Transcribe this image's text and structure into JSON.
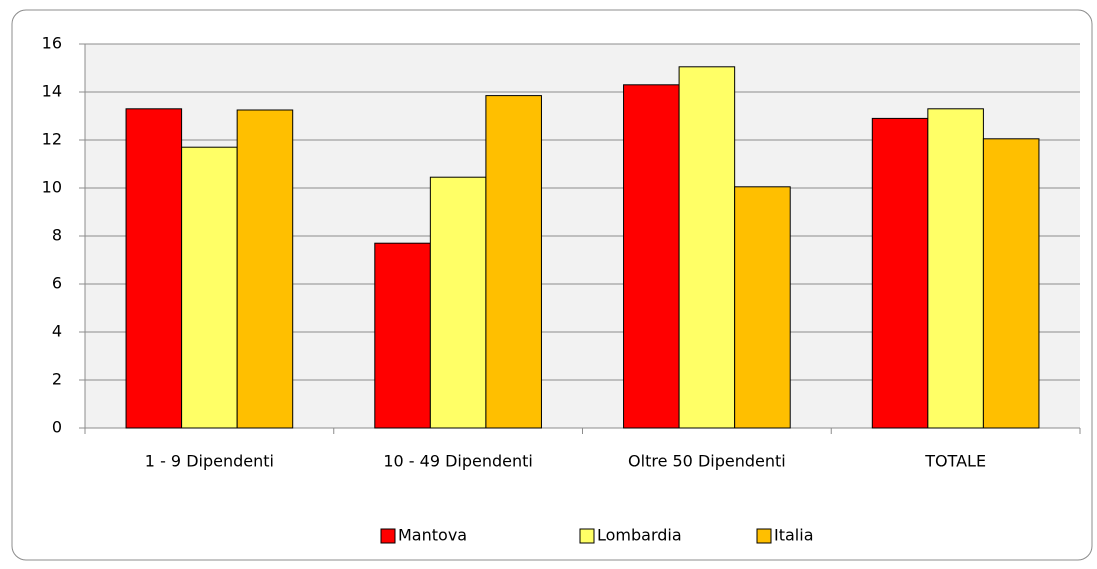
{
  "chart_data": {
    "type": "bar",
    "categories": [
      "1 - 9 Dipendenti",
      "10 - 49 Dipendenti",
      "Oltre 50 Dipendenti",
      "TOTALE"
    ],
    "series": [
      {
        "name": "Mantova",
        "color": "#ff0000",
        "values": [
          13.3,
          7.7,
          14.3,
          12.9
        ]
      },
      {
        "name": "Lombardia",
        "color": "#ffff66",
        "values": [
          11.7,
          10.45,
          15.05,
          13.3
        ]
      },
      {
        "name": "Italia",
        "color": "#ffbf00",
        "values": [
          13.25,
          13.85,
          10.05,
          12.05
        ]
      }
    ],
    "ylim": [
      0,
      16
    ],
    "yticks": [
      0,
      2,
      4,
      6,
      8,
      10,
      12,
      14,
      16
    ],
    "grid": true,
    "legend": "bottom"
  }
}
